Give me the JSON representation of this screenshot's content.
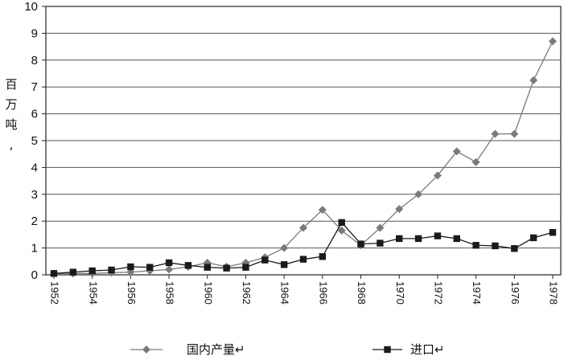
{
  "chart_data": {
    "type": "line",
    "title": "",
    "xlabel": "",
    "ylabel": "百万吨,",
    "xlim": [
      1952,
      1978
    ],
    "ylim": [
      0,
      10
    ],
    "yticks": [
      "0",
      "1",
      "2",
      "3",
      "4",
      "5",
      "6",
      "7",
      "8",
      "9",
      "10"
    ],
    "xticks": [
      "1952",
      "1954",
      "1956",
      "1958",
      "1960",
      "1962",
      "1964",
      "1966",
      "1968",
      "1970",
      "1972",
      "1974",
      "1976",
      "1978"
    ],
    "grid": "horizontal",
    "legend_position": "bottom",
    "series": [
      {
        "name": "国内产量↵",
        "marker": "diamond",
        "color": "#7a7a7a",
        "x": [
          1952,
          1953,
          1954,
          1955,
          1956,
          1957,
          1958,
          1959,
          1960,
          1961,
          1962,
          1963,
          1964,
          1965,
          1966,
          1967,
          1968,
          1969,
          1970,
          1971,
          1972,
          1973,
          1974,
          1975,
          1976,
          1977,
          1978
        ],
        "y": [
          0.05,
          0.05,
          0.05,
          0.08,
          0.1,
          0.15,
          0.2,
          0.3,
          0.45,
          0.3,
          0.45,
          0.65,
          1.0,
          1.75,
          2.42,
          1.65,
          1.1,
          1.75,
          2.45,
          3.0,
          3.7,
          4.6,
          4.2,
          5.25,
          5.25,
          7.25,
          8.7
        ]
      },
      {
        "name": "进口↵",
        "marker": "square",
        "color": "#1a1a1a",
        "x": [
          1952,
          1953,
          1954,
          1955,
          1956,
          1957,
          1958,
          1959,
          1960,
          1961,
          1962,
          1963,
          1964,
          1965,
          1966,
          1967,
          1968,
          1969,
          1970,
          1971,
          1972,
          1973,
          1974,
          1975,
          1976,
          1977,
          1978
        ],
        "y": [
          0.05,
          0.1,
          0.15,
          0.18,
          0.3,
          0.28,
          0.45,
          0.35,
          0.28,
          0.25,
          0.28,
          0.55,
          0.38,
          0.58,
          0.68,
          1.95,
          1.15,
          1.18,
          1.35,
          1.35,
          1.45,
          1.35,
          1.1,
          1.08,
          0.98,
          1.38,
          1.58
        ]
      }
    ]
  }
}
